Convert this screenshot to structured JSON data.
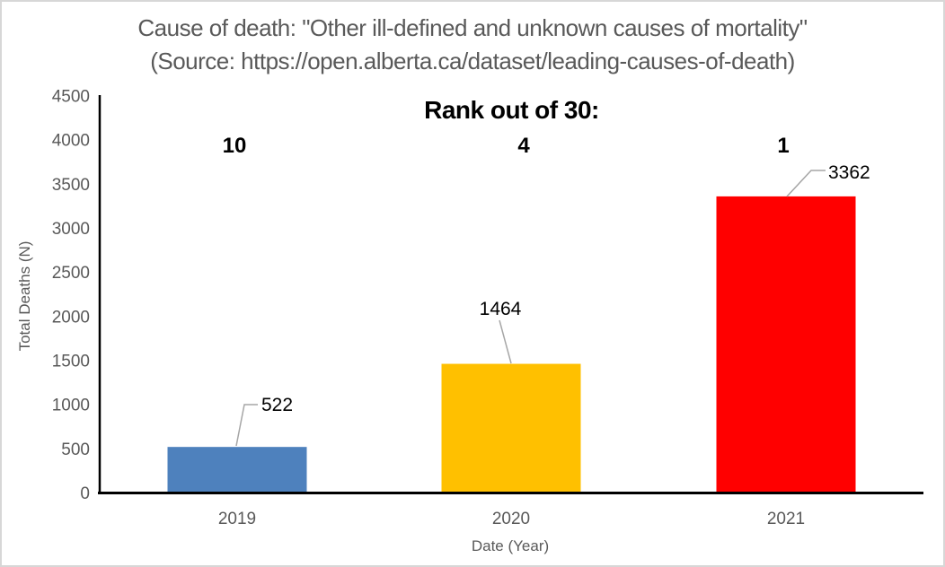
{
  "frame": {
    "background": "#ffffff",
    "border_color": "#d7d7d7"
  },
  "chart_data": {
    "type": "bar",
    "title_line1": "Cause of death: \"Other ill-defined and unknown causes of mortality\"",
    "title_line2": "(Source: https://open.alberta.ca/dataset/leading-causes-of-death)",
    "annotation": {
      "heading": "Rank out of 30:",
      "ranks": [
        "10",
        "4",
        "1"
      ]
    },
    "categories": [
      "2019",
      "2020",
      "2021"
    ],
    "values": [
      522,
      1464,
      3362
    ],
    "data_labels": [
      "522",
      "1464",
      "3362"
    ],
    "bar_colors": [
      "#4E81BD",
      "#FFC000",
      "#FF0000"
    ],
    "xlabel": "Date (Year)",
    "ylabel": "Total Deaths (N)",
    "ylim": [
      0,
      4500
    ],
    "ytick_step": 500,
    "ytick_labels": [
      "0",
      "500",
      "1000",
      "1500",
      "2000",
      "2500",
      "3000",
      "3500",
      "4000",
      "4500"
    ],
    "grid": false,
    "legend": "none",
    "colors": {
      "title_text": "#595959",
      "axis_line": "#000000",
      "tick_label": "#595959",
      "axis_title": "#595959",
      "data_label": "#000000",
      "annotation_text": "#000000",
      "leader_line": "#A6A6A6"
    }
  }
}
